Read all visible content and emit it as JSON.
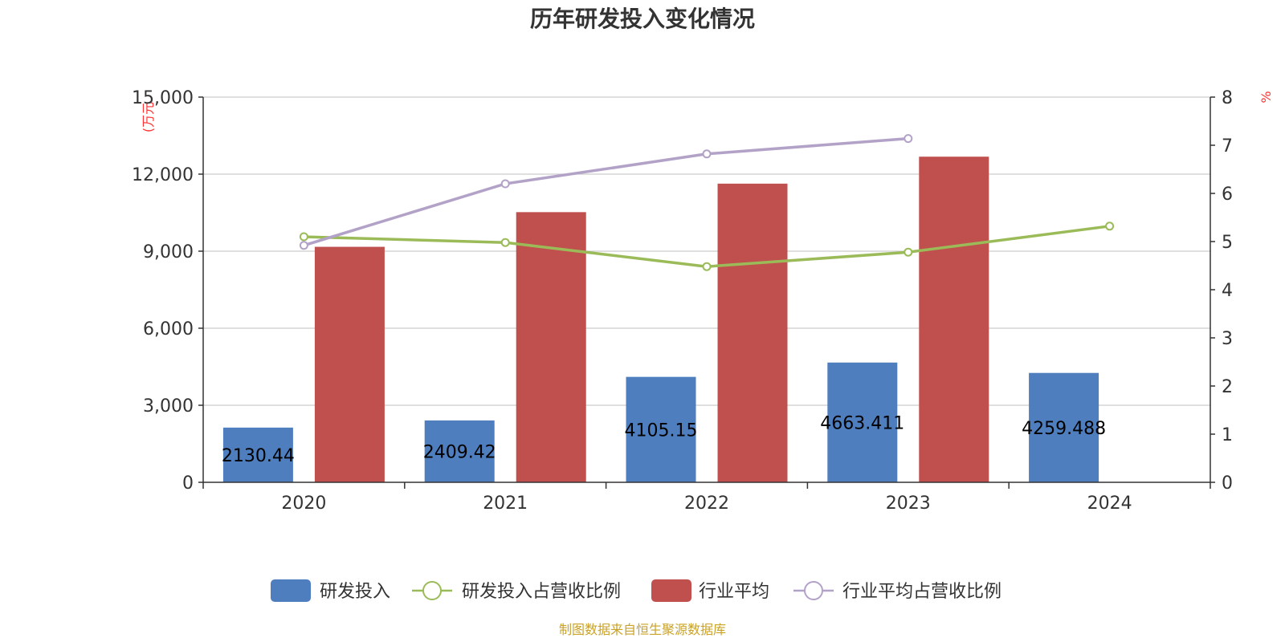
{
  "chart_data": {
    "type": "bar",
    "title": "历年研发投入变化情况",
    "left_axis_unit": "(万元",
    "right_axis_unit": "%",
    "categories": [
      "2020",
      "2021",
      "2022",
      "2023",
      "2024"
    ],
    "ylim_left": [
      0,
      15000
    ],
    "yticks_left": [
      "0",
      "3,000",
      "6,000",
      "9,000",
      "12,000",
      "15,000"
    ],
    "ylim_right": [
      0,
      8
    ],
    "yticks_right": [
      "0",
      "1",
      "2",
      "3",
      "4",
      "5",
      "6",
      "7",
      "8"
    ],
    "grid": true,
    "legend_position": "bottom",
    "series": [
      {
        "name": "研发投入",
        "kind": "bar",
        "axis": "left",
        "color": "#4f7ebe",
        "values": [
          2130.44,
          2409.42,
          4105.15,
          4663.411,
          4259.488
        ],
        "labels": [
          "2130.44",
          "2409.42",
          "4105.15",
          "4663.411",
          "4259.488"
        ]
      },
      {
        "name": "研发投入占营收比例",
        "kind": "line",
        "axis": "right",
        "color": "#9bbb59",
        "values": [
          5.1,
          4.98,
          4.48,
          4.78,
          5.32
        ]
      },
      {
        "name": "行业平均",
        "kind": "bar",
        "axis": "left",
        "color": "#c0504d",
        "values": [
          9170,
          10520,
          11630,
          12680,
          null
        ]
      },
      {
        "name": "行业平均占营收比例",
        "kind": "line",
        "axis": "right",
        "color": "#b3a2c7",
        "values": [
          4.92,
          6.2,
          6.82,
          7.14,
          null
        ]
      }
    ],
    "source": "制图数据来自恒生聚源数据库"
  }
}
